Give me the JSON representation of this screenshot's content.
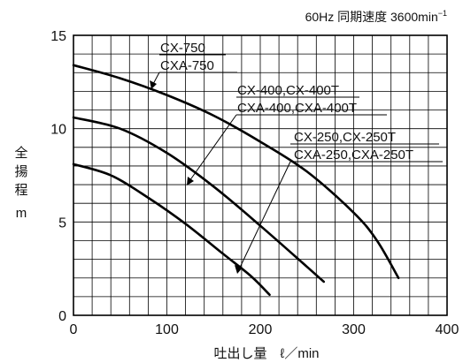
{
  "chart_data": {
    "type": "line",
    "condition": "60Hz 同期速度 3600min",
    "condition_sup": "−1",
    "xlabel": "吐出し量　ℓ／min",
    "ylabel": [
      "全",
      "揚",
      "程",
      "m"
    ],
    "xlim": [
      0,
      400
    ],
    "ylim": [
      0,
      15
    ],
    "x_ticks": [
      0,
      100,
      200,
      300,
      400
    ],
    "y_ticks": [
      0,
      5,
      10,
      15
    ],
    "x_tick_labels": [
      "0",
      "100",
      "200",
      "300",
      "400"
    ],
    "y_tick_labels": [
      "0",
      "5",
      "10",
      "15"
    ],
    "grid": {
      "x_step": 20,
      "y_step": 1
    },
    "line_color": "#000000",
    "series": [
      {
        "name": "CX-750 / CXA-750",
        "label_lines": [
          "CX-750",
          "CXA-750"
        ],
        "points": [
          [
            0,
            13.4
          ],
          [
            50,
            12.7
          ],
          [
            100,
            11.8
          ],
          [
            150,
            10.7
          ],
          [
            200,
            9.3
          ],
          [
            250,
            7.7
          ],
          [
            300,
            5.5
          ],
          [
            325,
            4.0
          ],
          [
            348,
            2.0
          ]
        ]
      },
      {
        "name": "CX-400,CX-400T / CXA-400,CXA-400T",
        "label_lines": [
          "CX-400,CX-400T",
          "CXA-400,CXA-400T"
        ],
        "points": [
          [
            0,
            10.6
          ],
          [
            50,
            10.0
          ],
          [
            100,
            8.7
          ],
          [
            150,
            6.9
          ],
          [
            200,
            4.8
          ],
          [
            250,
            2.6
          ],
          [
            268,
            1.8
          ]
        ]
      },
      {
        "name": "CX-250,CX-250T / CXA-250,CXA-250T",
        "label_lines": [
          "CX-250,CX-250T",
          "CXA-250,CXA-250T"
        ],
        "points": [
          [
            0,
            8.1
          ],
          [
            40,
            7.5
          ],
          [
            80,
            6.3
          ],
          [
            120,
            4.9
          ],
          [
            160,
            3.3
          ],
          [
            190,
            2.1
          ],
          [
            210,
            1.1
          ]
        ]
      }
    ]
  }
}
